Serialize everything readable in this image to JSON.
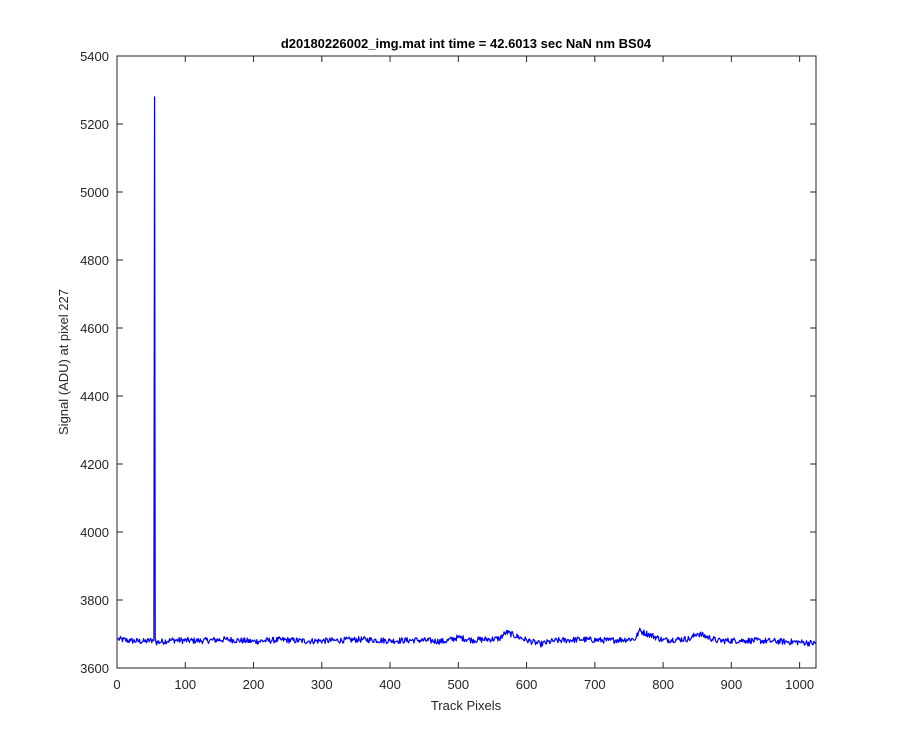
{
  "chart_data": {
    "type": "line",
    "title": "d20180226002_img.mat int time = 42.6013 sec  NaN nm BS04",
    "xlabel": "Track Pixels",
    "ylabel": "Signal (ADU) at pixel 227",
    "xlim": [
      0,
      1024
    ],
    "ylim": [
      3600,
      5400
    ],
    "xticks": [
      0,
      100,
      200,
      300,
      400,
      500,
      600,
      700,
      800,
      900,
      1000
    ],
    "yticks": [
      3600,
      3800,
      4000,
      4200,
      4400,
      4600,
      4800,
      5000,
      5200,
      5400
    ],
    "grid": false,
    "series": [
      {
        "color": "#0000ff",
        "baseline": 3680,
        "x": [
          1,
          20,
          40,
          53,
          54,
          55,
          56,
          57,
          80,
          120,
          160,
          200,
          240,
          280,
          320,
          360,
          400,
          440,
          480,
          500,
          520,
          560,
          570,
          600,
          620,
          640,
          680,
          720,
          760,
          765,
          800,
          840,
          850,
          880,
          920,
          960,
          1000,
          1024
        ],
        "y": [
          3685,
          3680,
          3678,
          3682,
          3680,
          5280,
          3690,
          3675,
          3682,
          3680,
          3684,
          3678,
          3683,
          3679,
          3681,
          3684,
          3680,
          3682,
          3678,
          3690,
          3682,
          3686,
          3705,
          3682,
          3670,
          3680,
          3684,
          3681,
          3686,
          3710,
          3682,
          3686,
          3702,
          3680,
          3681,
          3679,
          3676,
          3672
        ]
      }
    ]
  }
}
